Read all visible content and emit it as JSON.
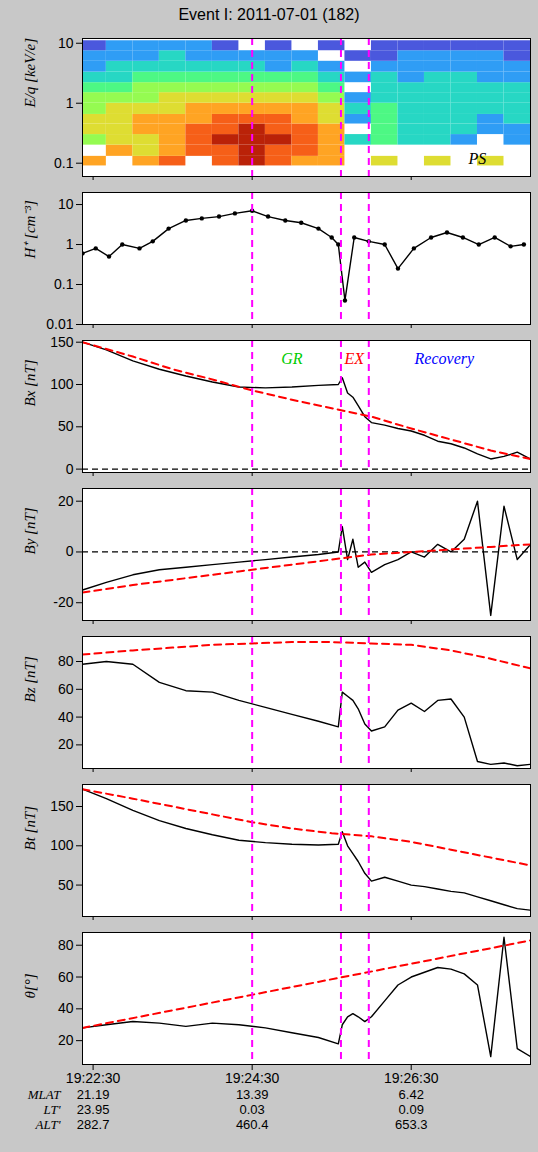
{
  "chart_data": {
    "title": "Event I: 2011-07-01 (182)",
    "xlim": [
      "19:22:22",
      "19:28:00"
    ],
    "xticks": [
      "19:22:30",
      "19:24:30",
      "19:26:30"
    ],
    "vlines": {
      "x": [
        "19:24:30",
        "19:25:37",
        "19:25:58"
      ],
      "color": "#ff00ff",
      "line_style": "dashed"
    },
    "x_rows": [
      {
        "label": "MLAT",
        "values": [
          21.19,
          13.39,
          6.42
        ]
      },
      {
        "label": "LT'",
        "values": [
          23.95,
          0.03,
          0.09
        ]
      },
      {
        "label": "ALT'",
        "values": [
          282.7,
          460.4,
          653.3
        ]
      }
    ],
    "panels": [
      {
        "type": "heatmap",
        "ylabel": "E/q [keV/e]",
        "log": "y",
        "tick_labels": "y",
        "ylim": [
          0.06,
          12
        ],
        "yticks": [
          0.1,
          1,
          10
        ],
        "x_bins": [
          "19:22:20",
          "19:22:40",
          "19:23:00",
          "19:23:20",
          "19:23:40",
          "19:24:00",
          "19:24:20",
          "19:24:40",
          "19:25:00",
          "19:25:20",
          "19:25:40",
          "19:26:00",
          "19:26:20",
          "19:26:40",
          "19:27:00",
          "19:27:20",
          "19:27:40",
          "19:28:00"
        ],
        "y_bins": [
          0.06,
          0.09,
          0.13,
          0.2,
          0.3,
          0.45,
          0.65,
          1,
          1.5,
          2.2,
          3.3,
          5,
          7.5,
          11
        ],
        "cell_range": [
          0,
          10
        ],
        "cells": [
          [
            null,
            7,
            null,
            5,
            6,
            6,
            5,
            5,
            4,
            3,
            2,
            2,
            1
          ],
          [
            null,
            null,
            7,
            6,
            6,
            6,
            6,
            5,
            4,
            3,
            3,
            2,
            2
          ],
          [
            null,
            7,
            6,
            6,
            7,
            7,
            6,
            5,
            5,
            4,
            3,
            2,
            2
          ],
          [
            null,
            8,
            7,
            7,
            7,
            7,
            6,
            6,
            5,
            4,
            3,
            3,
            2
          ],
          [
            null,
            null,
            8,
            8,
            8,
            7,
            7,
            6,
            5,
            4,
            3,
            2,
            2
          ],
          [
            null,
            8,
            8,
            9,
            8,
            8,
            7,
            6,
            5,
            4,
            3,
            2,
            1
          ],
          [
            null,
            9,
            9,
            9,
            9,
            8,
            7,
            6,
            5,
            4,
            3,
            2,
            null
          ],
          [
            null,
            8,
            8,
            9,
            8,
            8,
            7,
            6,
            5,
            4,
            2,
            2,
            1
          ],
          [
            null,
            7,
            8,
            8,
            8,
            7,
            7,
            6,
            5,
            4,
            3,
            2,
            null
          ],
          [
            null,
            7,
            7,
            7,
            7,
            6,
            6,
            5,
            4,
            3,
            2,
            null,
            1
          ],
          [
            null,
            null,
            null,
            3,
            null,
            2,
            3,
            2,
            null,
            2,
            null,
            1,
            null
          ],
          [
            null,
            6,
            null,
            4,
            4,
            4,
            4,
            3,
            3,
            3,
            2,
            1,
            1
          ],
          [
            null,
            null,
            null,
            3,
            3,
            3,
            3,
            3,
            3,
            2,
            2,
            2,
            1
          ],
          [
            null,
            6,
            null,
            3,
            3,
            3,
            3,
            3,
            3,
            3,
            2,
            2,
            1
          ],
          [
            null,
            null,
            null,
            2,
            3,
            3,
            3,
            3,
            3,
            3,
            2,
            2,
            1
          ],
          [
            null,
            6,
            null,
            null,
            2,
            2,
            3,
            3,
            3,
            2,
            2,
            2,
            1
          ],
          [
            null,
            null,
            null,
            2,
            2,
            3,
            3,
            3,
            3,
            2,
            2,
            1,
            1
          ]
        ],
        "annotations": [
          {
            "text": "PS",
            "x": "19:27:20",
            "y": 0.12,
            "color": "#000000"
          }
        ]
      },
      {
        "type": "line",
        "ylabel": "H⁺ [cm⁻³]",
        "log": "y",
        "tick_labels": "y",
        "ylim": [
          0.01,
          20
        ],
        "yticks": [
          0.01,
          0.1,
          1,
          10
        ],
        "series": [
          {
            "color": "#000000",
            "line_style": "solid",
            "marker": "circle",
            "x": [
              "19:22:22",
              "19:22:32",
              "19:22:42",
              "19:22:52",
              "19:23:05",
              "19:23:15",
              "19:23:27",
              "19:23:40",
              "19:23:52",
              "19:24:05",
              "19:24:17",
              "19:24:30",
              "19:24:42",
              "19:24:55",
              "19:25:07",
              "19:25:20",
              "19:25:30",
              "19:25:35",
              "19:25:40",
              "19:25:47",
              "19:25:58",
              "19:26:10",
              "19:26:20",
              "19:26:32",
              "19:26:45",
              "19:26:57",
              "19:27:09",
              "19:27:21",
              "19:27:33",
              "19:27:45",
              "19:27:55"
            ],
            "values": [
              0.6,
              0.8,
              0.5,
              1.0,
              0.8,
              1.2,
              2.5,
              4.0,
              4.5,
              5.0,
              6.0,
              7.0,
              5.0,
              4.0,
              3.5,
              2.5,
              1.5,
              1.0,
              0.04,
              1.5,
              1.2,
              1.0,
              0.25,
              0.8,
              1.5,
              2.0,
              1.5,
              1.0,
              1.5,
              0.9,
              1.0
            ]
          }
        ]
      },
      {
        "type": "line",
        "ylabel": "Bx [nT]",
        "tick_labels": "y",
        "hline": 0,
        "ylim": [
          -4,
          152
        ],
        "yticks": [
          0,
          50,
          100,
          150
        ],
        "annotations": [
          {
            "text": "GR",
            "x": "19:25:00",
            "y": 130,
            "color": "#00cc00"
          },
          {
            "text": "EX",
            "x": "19:25:47",
            "y": 130,
            "color": "#ff0000"
          },
          {
            "text": "Recovery",
            "x": "19:26:55",
            "y": 130,
            "color": "#0000ff"
          }
        ],
        "series": [
          {
            "color": "#000000",
            "line_style": "solid",
            "x": [
              "19:22:22",
              "19:22:40",
              "19:23:00",
              "19:23:20",
              "19:23:40",
              "19:24:00",
              "19:24:20",
              "19:24:40",
              "19:25:00",
              "19:25:20",
              "19:25:35",
              "19:25:38",
              "19:25:42",
              "19:25:46",
              "19:25:50",
              "19:25:55",
              "19:26:00",
              "19:26:10",
              "19:26:20",
              "19:26:30",
              "19:26:40",
              "19:26:50",
              "19:27:00",
              "19:27:10",
              "19:27:20",
              "19:27:30",
              "19:27:40",
              "19:27:50",
              "19:28:00"
            ],
            "values": [
              150,
              141,
              128,
              118,
              110,
              103,
              97,
              96,
              97,
              99,
              100,
              108,
              90,
              85,
              75,
              62,
              55,
              52,
              48,
              45,
              40,
              33,
              30,
              25,
              18,
              12,
              15,
              20,
              12
            ]
          },
          {
            "color": "#ff0000",
            "line_style": "dashed",
            "x": [
              "19:22:22",
              "19:23:00",
              "19:23:30",
              "19:24:00",
              "19:24:30",
              "19:25:00",
              "19:25:30",
              "19:26:00",
              "19:26:30",
              "19:27:00",
              "19:27:30",
              "19:28:00"
            ],
            "values": [
              150,
              133,
              118,
              106,
              93,
              82,
              72,
              62,
              48,
              35,
              22,
              12
            ]
          }
        ]
      },
      {
        "type": "line",
        "ylabel": "By [nT]",
        "tick_labels": "y",
        "hline": 0,
        "ylim": [
          -27,
          25
        ],
        "yticks": [
          -20,
          0,
          20
        ],
        "series": [
          {
            "color": "#000000",
            "line_style": "solid",
            "x": [
              "19:22:22",
              "19:22:40",
              "19:23:00",
              "19:23:20",
              "19:23:40",
              "19:24:00",
              "19:24:20",
              "19:24:40",
              "19:25:00",
              "19:25:20",
              "19:25:35",
              "19:25:38",
              "19:25:42",
              "19:25:46",
              "19:25:50",
              "19:25:55",
              "19:26:00",
              "19:26:10",
              "19:26:20",
              "19:26:30",
              "19:26:40",
              "19:26:50",
              "19:27:00",
              "19:27:10",
              "19:27:20",
              "19:27:30",
              "19:27:40",
              "19:27:50",
              "19:28:00"
            ],
            "values": [
              -15,
              -12,
              -9,
              -7,
              -6,
              -5,
              -4,
              -3,
              -2,
              -1,
              0,
              10,
              -3,
              5,
              -6,
              -4,
              -8,
              -5,
              -3,
              0,
              -2,
              3,
              0,
              5,
              20,
              -25,
              18,
              -3,
              3
            ]
          },
          {
            "color": "#ff0000",
            "line_style": "dashed",
            "x": [
              "19:22:22",
              "19:23:00",
              "19:23:30",
              "19:24:00",
              "19:24:30",
              "19:25:00",
              "19:25:30",
              "19:26:00",
              "19:26:30",
              "19:27:00",
              "19:27:30",
              "19:28:00"
            ],
            "values": [
              -16,
              -13,
              -11,
              -9,
              -7,
              -5,
              -3,
              -1,
              0,
              1,
              2,
              3
            ]
          }
        ]
      },
      {
        "type": "line",
        "ylabel": "Bz [nT]",
        "tick_labels": "y",
        "ylim": [
          3,
          98
        ],
        "yticks": [
          20,
          40,
          60,
          80
        ],
        "series": [
          {
            "color": "#000000",
            "line_style": "solid",
            "x": [
              "19:22:22",
              "19:22:40",
              "19:23:00",
              "19:23:20",
              "19:23:40",
              "19:24:00",
              "19:24:20",
              "19:24:40",
              "19:25:00",
              "19:25:20",
              "19:25:35",
              "19:25:38",
              "19:25:42",
              "19:25:46",
              "19:25:50",
              "19:25:55",
              "19:26:00",
              "19:26:10",
              "19:26:20",
              "19:26:30",
              "19:26:40",
              "19:26:50",
              "19:27:00",
              "19:27:10",
              "19:27:20",
              "19:27:30",
              "19:27:40",
              "19:27:50",
              "19:28:00"
            ],
            "values": [
              78,
              80,
              78,
              65,
              59,
              58,
              52,
              47,
              42,
              37,
              33,
              58,
              55,
              52,
              46,
              35,
              30,
              33,
              45,
              50,
              44,
              52,
              53,
              40,
              8,
              6,
              7,
              5,
              6
            ]
          },
          {
            "color": "#ff0000",
            "line_style": "dashed",
            "x": [
              "19:22:22",
              "19:23:00",
              "19:23:30",
              "19:24:00",
              "19:24:30",
              "19:25:00",
              "19:25:30",
              "19:26:00",
              "19:26:30",
              "19:27:00",
              "19:27:30",
              "19:28:00"
            ],
            "values": [
              85,
              88,
              90,
              92,
              93,
              94,
              94,
              93,
              92,
              88,
              82,
              75
            ]
          }
        ]
      },
      {
        "type": "line",
        "ylabel": "Bt [nT]",
        "tick_labels": "y",
        "ylim": [
          10,
          178
        ],
        "yticks": [
          50,
          100,
          150
        ],
        "series": [
          {
            "color": "#000000",
            "line_style": "solid",
            "x": [
              "19:22:22",
              "19:22:40",
              "19:23:00",
              "19:23:20",
              "19:23:40",
              "19:24:00",
              "19:24:20",
              "19:24:40",
              "19:25:00",
              "19:25:20",
              "19:25:35",
              "19:25:38",
              "19:25:42",
              "19:25:46",
              "19:25:50",
              "19:25:55",
              "19:26:00",
              "19:26:10",
              "19:26:20",
              "19:26:30",
              "19:26:40",
              "19:26:50",
              "19:27:00",
              "19:27:10",
              "19:27:20",
              "19:27:30",
              "19:27:40",
              "19:27:50",
              "19:28:00"
            ],
            "values": [
              172,
              160,
              145,
              132,
              122,
              114,
              107,
              104,
              102,
              101,
              102,
              118,
              100,
              90,
              80,
              65,
              55,
              60,
              55,
              50,
              48,
              45,
              42,
              40,
              35,
              30,
              25,
              20,
              18
            ]
          },
          {
            "color": "#ff0000",
            "line_style": "dashed",
            "x": [
              "19:22:22",
              "19:23:00",
              "19:23:30",
              "19:24:00",
              "19:24:30",
              "19:25:00",
              "19:25:30",
              "19:26:00",
              "19:26:30",
              "19:27:00",
              "19:27:30",
              "19:28:00"
            ],
            "values": [
              172,
              160,
              150,
              140,
              130,
              122,
              116,
              112,
              105,
              95,
              85,
              75
            ]
          }
        ]
      },
      {
        "type": "line",
        "ylabel": "θ[°]",
        "ylim": [
          5,
          88
        ],
        "yticks": [
          20,
          40,
          60,
          80
        ],
        "series": [
          {
            "color": "#000000",
            "line_style": "solid",
            "x": [
              "19:22:22",
              "19:22:40",
              "19:23:00",
              "19:23:20",
              "19:23:40",
              "19:24:00",
              "19:24:20",
              "19:24:40",
              "19:25:00",
              "19:25:20",
              "19:25:35",
              "19:25:38",
              "19:25:42",
              "19:25:46",
              "19:25:50",
              "19:25:55",
              "19:26:00",
              "19:26:10",
              "19:26:20",
              "19:26:30",
              "19:26:40",
              "19:26:50",
              "19:27:00",
              "19:27:10",
              "19:27:20",
              "19:27:30",
              "19:27:40",
              "19:27:50",
              "19:28:00"
            ],
            "values": [
              28,
              30,
              32,
              31,
              29,
              31,
              30,
              28,
              25,
              22,
              18,
              30,
              35,
              37,
              35,
              32,
              35,
              45,
              55,
              60,
              63,
              66,
              65,
              62,
              55,
              10,
              85,
              15,
              10
            ]
          },
          {
            "color": "#ff0000",
            "line_style": "dashed",
            "x": [
              "19:22:22",
              "19:28:00"
            ],
            "values": [
              28,
              83
            ]
          }
        ]
      }
    ]
  }
}
